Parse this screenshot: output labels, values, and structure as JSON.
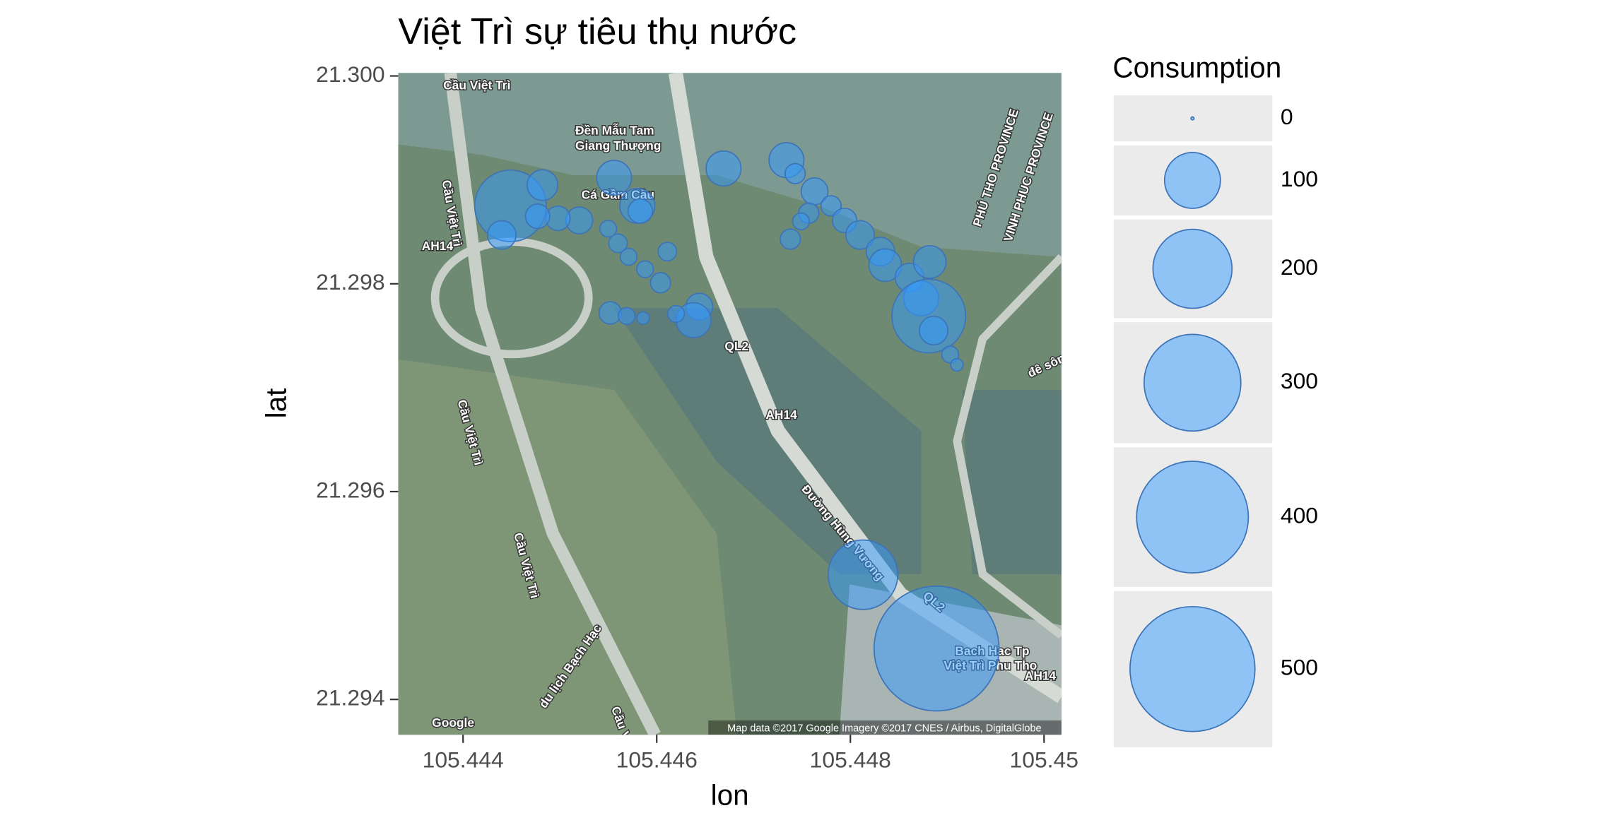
{
  "chart_data": {
    "type": "scatter",
    "title": "Việt Trì sự tiêu thụ nước",
    "x_label": "lon",
    "y_label": "lat",
    "xlim": [
      105.44333,
      105.45018
    ],
    "ylim": [
      21.29366,
      21.30003
    ],
    "xticks": [
      105.444,
      105.446,
      105.448,
      105.45
    ],
    "yticks": [
      {
        "value": 21.3,
        "label": "21.300"
      },
      21.298,
      21.296,
      21.294
    ],
    "color": "#3399ff",
    "stroke": "#3d74b8",
    "series": [
      {
        "name": "Consumption",
        "x": [
          105.44449,
          105.4444,
          105.44482,
          105.44556,
          105.4458,
          105.44583,
          105.4452,
          105.44498,
          105.44477,
          105.44669,
          105.44734,
          105.44743,
          105.44763,
          105.44757,
          105.4478,
          105.44794,
          105.4481,
          105.44831,
          105.44836,
          105.44861,
          105.44882,
          105.44873,
          105.44881,
          105.44886,
          105.44903,
          105.4491,
          105.44813,
          105.44889,
          105.44644,
          105.44638,
          105.4462,
          105.44604,
          105.44588,
          105.44571,
          105.4456,
          105.44552,
          105.44569,
          105.44586,
          105.44611,
          105.44738,
          105.44749,
          105.4455
        ],
        "y": [
          21.29875,
          21.29847,
          21.29895,
          21.29902,
          21.29875,
          21.2987,
          21.29861,
          21.29863,
          21.29865,
          21.29911,
          21.29919,
          21.29906,
          21.29889,
          21.29868,
          21.29875,
          21.29861,
          21.29847,
          21.29831,
          21.29818,
          21.29806,
          21.29821,
          21.29786,
          21.29769,
          21.29755,
          21.29732,
          21.29722,
          21.2952,
          21.29449,
          21.29778,
          21.29765,
          21.29771,
          21.29801,
          21.29814,
          21.29826,
          21.29839,
          21.29772,
          21.29769,
          21.29767,
          21.29831,
          21.29843,
          21.2986,
          21.29853
        ],
        "size": [
          164,
          26,
          30,
          39,
          39,
          19,
          23,
          19,
          19,
          39,
          39,
          13,
          23,
          13,
          13,
          19,
          26,
          26,
          34,
          26,
          34,
          39,
          174,
          26,
          9,
          5,
          155,
          500,
          23,
          39,
          9,
          13,
          9,
          9,
          11,
          16,
          9,
          5,
          11,
          13,
          9,
          9
        ]
      }
    ],
    "size_legend": {
      "title": "Consumption",
      "values": [
        0,
        100,
        200,
        300,
        400,
        500
      ]
    },
    "map_labels": [
      "Cầu Việt Trì",
      "Đền Mẫu Tam",
      "Giang Thượng",
      "Cá Gầm Cầu",
      "Cầu Việt Trì",
      "Cầu Việt Trì",
      "Cầu Việt Trì",
      "AH14",
      "QL2",
      "AH14",
      "Đường Hùng Vương",
      "QL2",
      "PHÚ THO PROVINCE",
      "VINH PHUC PROVINCE",
      "đê sông Ph",
      "Bach Hac Tp",
      "Việt Trì Phu Tho",
      "AH14",
      "du lịch Bạch Hạc",
      "Cầu Việt Tr",
      "Google",
      "Map data ©2017 Google  Imagery ©2017 CNES / Airbus, DigitalGlobe"
    ]
  }
}
